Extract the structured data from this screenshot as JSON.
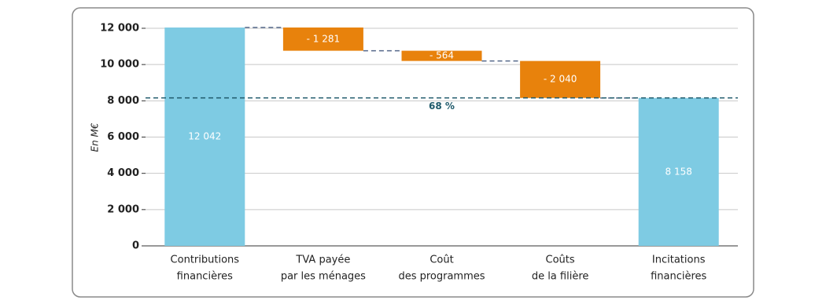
{
  "chart_data": {
    "type": "waterfall",
    "y_label": "En M€",
    "categories": [
      [
        "Contributions",
        "financières"
      ],
      [
        "TVA payée",
        "par les ménages"
      ],
      [
        "Coût",
        "des programmes"
      ],
      [
        "Coûts",
        "de la filière"
      ],
      [
        "Incitations",
        "financières"
      ]
    ],
    "measure": [
      "absolute",
      "relative",
      "relative",
      "relative",
      "absolute"
    ],
    "values": [
      12042,
      -1281,
      -564,
      -2040,
      8158
    ],
    "value_labels": [
      "12 042",
      "- 1 281",
      "- 564",
      "- 2 040",
      "8 158"
    ],
    "colors": {
      "absolute": "#7ecbe3",
      "relative": "#e8820c"
    },
    "ylim": [
      0,
      12000
    ],
    "yticks": [
      0,
      {
        "value": 2000,
        "label": "2 000"
      },
      {
        "value": 4000,
        "label": "4 000"
      },
      {
        "value": 6000,
        "label": "6 000"
      },
      {
        "value": 8000,
        "label": "8 000"
      },
      {
        "value": 10000,
        "label": "10 000"
      },
      {
        "value": 12000,
        "label": "12 000"
      }
    ],
    "grid": true,
    "reference_line": {
      "value": 8158,
      "label": "68 %",
      "color": "#1f5a6b"
    }
  }
}
